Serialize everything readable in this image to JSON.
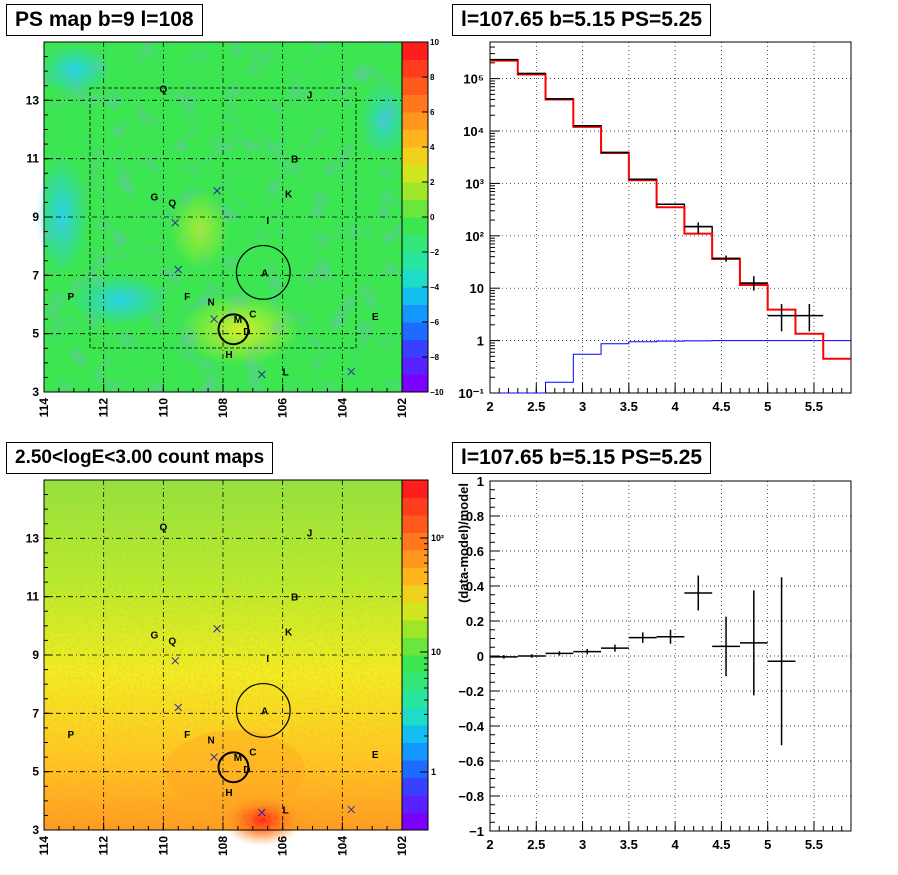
{
  "panels": {
    "tl_title": "PS map b=9 l=108",
    "tr_title": "l=107.65 b=5.15 PS=5.25",
    "bl_title": "2.50<logE<3.00 count maps",
    "br_title": "l=107.65 b=5.15 PS=5.25"
  },
  "chart_data": [
    {
      "type": "heatmap",
      "id": "ps-map",
      "title": "PS map b=9 l=108",
      "xlim": [
        114,
        102
      ],
      "ylim": [
        3,
        15
      ],
      "xticks": [
        "114",
        "112",
        "110",
        "108",
        "106",
        "104",
        "102"
      ],
      "yticks": [
        "3",
        "5",
        "7",
        "9",
        "11",
        "13"
      ],
      "colorbar": {
        "min": -10,
        "max": 10,
        "ticks": [
          "10",
          "8",
          "6",
          "4",
          "2",
          "0",
          "−2",
          "−4",
          "−6",
          "−8",
          "−10"
        ]
      },
      "labels": [
        {
          "text": "Q",
          "l": 110.0,
          "b": 13.4
        },
        {
          "text": "J",
          "l": 105.1,
          "b": 13.2
        },
        {
          "text": "B",
          "l": 105.6,
          "b": 11.0
        },
        {
          "text": "K",
          "l": 105.8,
          "b": 9.8
        },
        {
          "text": "G",
          "l": 110.3,
          "b": 9.7
        },
        {
          "text": "Q",
          "l": 109.7,
          "b": 9.5
        },
        {
          "text": "I",
          "l": 106.5,
          "b": 8.9
        },
        {
          "text": "A",
          "l": 106.6,
          "b": 7.1
        },
        {
          "text": "P",
          "l": 113.1,
          "b": 6.3
        },
        {
          "text": "F",
          "l": 109.2,
          "b": 6.3
        },
        {
          "text": "N",
          "l": 108.4,
          "b": 6.1
        },
        {
          "text": "M",
          "l": 107.5,
          "b": 5.5
        },
        {
          "text": "C",
          "l": 107.0,
          "b": 5.7
        },
        {
          "text": "D",
          "l": 107.2,
          "b": 5.1
        },
        {
          "text": "E",
          "l": 102.9,
          "b": 5.6
        },
        {
          "text": "H",
          "l": 107.8,
          "b": 4.3
        },
        {
          "text": "L",
          "l": 105.9,
          "b": 3.7
        }
      ],
      "crosses": [
        {
          "l": 108.2,
          "b": 9.9
        },
        {
          "l": 109.6,
          "b": 8.8
        },
        {
          "l": 109.5,
          "b": 7.2
        },
        {
          "l": 108.3,
          "b": 5.5
        },
        {
          "l": 106.7,
          "b": 3.6
        },
        {
          "l": 103.7,
          "b": 3.7
        }
      ],
      "circles": [
        {
          "l": 106.65,
          "b": 7.1,
          "r": 0.9
        },
        {
          "l": 107.65,
          "b": 5.15,
          "r": 0.5
        }
      ]
    },
    {
      "type": "line",
      "id": "spectrum",
      "title": "l=107.65 b=5.15 PS=5.25",
      "xlim": [
        2,
        5.9
      ],
      "ylim": [
        0.1,
        500000
      ],
      "yscale": "log",
      "xticks": [
        2,
        2.5,
        3,
        3.5,
        4,
        4.5,
        5,
        5.5
      ],
      "bin_edges": [
        2.0,
        2.3,
        2.6,
        2.9,
        3.2,
        3.5,
        3.8,
        4.1,
        4.4,
        4.7,
        5.0,
        5.3,
        5.6,
        5.9
      ],
      "series": [
        {
          "color": "#ff0000",
          "values": [
            220000,
            120000,
            40000,
            12000,
            3800,
            1150,
            350,
            110,
            36,
            11.5,
            3.9,
            1.35,
            0.45
          ]
        },
        {
          "color": "#000000",
          "values": [
            230000,
            125000,
            41000,
            12600,
            3900,
            1200,
            400,
            150,
            37,
            12.5,
            3,
            3,
            0
          ]
        },
        {
          "color": "#0000ff",
          "values": [
            0.05,
            0.1,
            0.16,
            0.55,
            0.87,
            0.95,
            0.98,
            0.99,
            1,
            1,
            1,
            1,
            1
          ]
        }
      ],
      "data_points": [
        {
          "x": 2.15,
          "y": 230000
        },
        {
          "x": 2.45,
          "y": 125000
        },
        {
          "x": 2.75,
          "y": 41000
        },
        {
          "x": 3.05,
          "y": 12600
        },
        {
          "x": 3.35,
          "y": 3900
        },
        {
          "x": 3.65,
          "y": 1200
        },
        {
          "x": 3.95,
          "y": 400
        },
        {
          "x": 4.25,
          "y": 150,
          "el": 110,
          "eh": 180
        },
        {
          "x": 4.55,
          "y": 37,
          "el": 32,
          "eh": 42
        },
        {
          "x": 4.85,
          "y": 12.5,
          "el": 9,
          "eh": 17
        },
        {
          "x": 5.15,
          "y": 3,
          "el": 1.5,
          "eh": 5
        },
        {
          "x": 5.45,
          "y": 3,
          "el": 1.5,
          "eh": 5
        }
      ],
      "yticks": [
        "10⁻¹",
        "1",
        "10",
        "10²",
        "10³",
        "10⁴",
        "10⁵"
      ]
    },
    {
      "type": "heatmap",
      "id": "count-map",
      "title": "2.50<logE<3.00 count maps",
      "xlim": [
        114,
        102
      ],
      "ylim": [
        3,
        15
      ],
      "xticks": [
        "114",
        "112",
        "110",
        "108",
        "106",
        "104",
        "102"
      ],
      "yticks": [
        "3",
        "5",
        "7",
        "9",
        "11",
        "13"
      ],
      "colorbar": {
        "scale": "log",
        "ticks": [
          "10²",
          "10",
          "1"
        ]
      }
    },
    {
      "type": "scatter",
      "id": "residual",
      "title": "l=107.65 b=5.15 PS=5.25",
      "ylabel": "(data-model)/model",
      "xlim": [
        2,
        5.9
      ],
      "ylim": [
        -1,
        1
      ],
      "xticks": [
        "2",
        "2.5",
        "3",
        "3.5",
        "4",
        "4.5",
        "5",
        "5.5"
      ],
      "yticks": [
        "1",
        "0.8",
        "0.6",
        "0.4",
        "0.2",
        "0",
        "−0.2",
        "−0.4",
        "−0.6",
        "−0.8",
        "−1"
      ],
      "points": [
        {
          "x": 2.15,
          "y": -0.005,
          "err": 0.01
        },
        {
          "x": 2.45,
          "y": 0.0,
          "err": 0.01
        },
        {
          "x": 2.75,
          "y": 0.015,
          "err": 0.012
        },
        {
          "x": 3.05,
          "y": 0.025,
          "err": 0.015
        },
        {
          "x": 3.35,
          "y": 0.045,
          "err": 0.02
        },
        {
          "x": 3.65,
          "y": 0.105,
          "err": 0.03
        },
        {
          "x": 3.95,
          "y": 0.11,
          "err": 0.04
        },
        {
          "x": 4.25,
          "y": 0.36,
          "err": 0.1
        },
        {
          "x": 4.55,
          "y": 0.055,
          "err": 0.17
        },
        {
          "x": 4.85,
          "y": 0.075,
          "err": 0.3
        },
        {
          "x": 5.15,
          "y": -0.03,
          "err": 0.48
        }
      ]
    }
  ]
}
